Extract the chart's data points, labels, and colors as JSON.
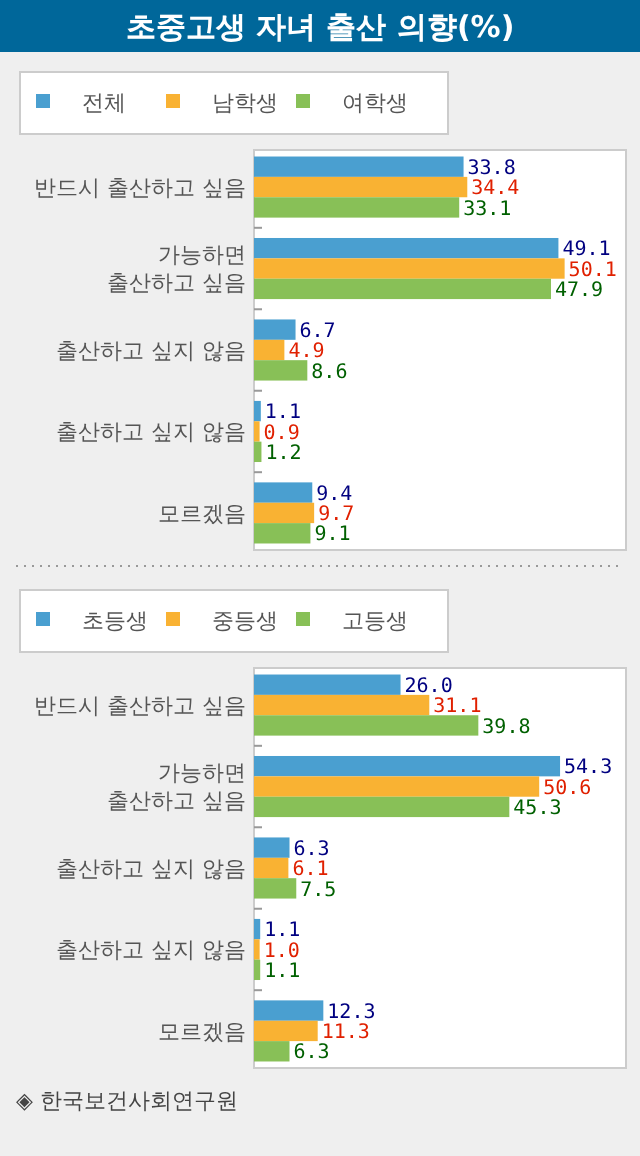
{
  "chart_data": [
    {
      "type": "bar",
      "orientation": "horizontal",
      "title": "초중고생 자녀 출산 의향(%)",
      "categories": [
        "반드시 출산하고 싶음",
        "가능하면\n출산하고 싶음",
        "출산하고 싶지 않음",
        "출산하고 싶지 않음",
        "모르겠음"
      ],
      "series": [
        {
          "name": "전체",
          "color": "#4a9fd0",
          "values": [
            33.8,
            49.1,
            6.7,
            1.1,
            9.4
          ]
        },
        {
          "name": "남학생",
          "color": "#f9b233",
          "values": [
            34.4,
            50.1,
            4.9,
            0.9,
            9.7
          ]
        },
        {
          "name": "여학생",
          "color": "#88c057",
          "values": [
            33.1,
            47.9,
            8.6,
            1.2,
            9.1
          ]
        }
      ],
      "xlim": [
        0,
        60
      ],
      "data_labels": true,
      "legend": "top",
      "tick_labels": "y"
    },
    {
      "type": "bar",
      "orientation": "horizontal",
      "categories": [
        "반드시 출산하고 싶음",
        "가능하면\n출산하고 싶음",
        "출산하고 싶지 않음",
        "출산하고 싶지 않음",
        "모르겠음"
      ],
      "series": [
        {
          "name": "초등생",
          "color": "#4a9fd0",
          "values": [
            26.0,
            54.3,
            6.3,
            1.1,
            12.3
          ],
          "value_labels": [
            "26.0",
            "54.3",
            "6.3",
            "1.1",
            "12.3"
          ]
        },
        {
          "name": "중등생",
          "color": "#f9b233",
          "values": [
            31.1,
            50.6,
            6.1,
            1.0,
            11.3
          ],
          "value_labels": [
            "31.1",
            "50.6",
            "6.1",
            "1.0",
            "11.3"
          ]
        },
        {
          "name": "고등생",
          "color": "#88c057",
          "values": [
            39.8,
            45.3,
            7.5,
            1.1,
            6.3
          ],
          "value_labels": [
            "39.8",
            "45.3",
            "7.5",
            "1.1",
            "6.3"
          ]
        }
      ],
      "xlim": [
        0,
        66
      ],
      "data_labels": true,
      "legend": "top",
      "tick_labels": "y",
      "annotations": [
        "◈ 한국보건사회연구원"
      ]
    }
  ]
}
